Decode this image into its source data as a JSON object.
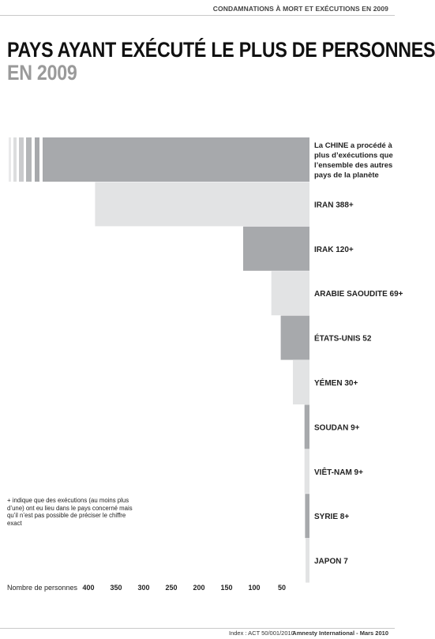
{
  "header": {
    "tag": "CONDAMNATIONS À MORT ET EXÉCUTIONS EN 2009",
    "title_line1": "PAYS AYANT EXÉCUTÉ LE PLUS DE PERSONNES",
    "title_line2": "EN 2009"
  },
  "colors": {
    "dark_bar": "#a7a9ac",
    "light_bar": "#e2e3e4",
    "title_secondary": "#9a9a9a"
  },
  "chart_data": {
    "type": "bar",
    "orientation": "horizontal",
    "direction": "right-to-left",
    "title": "PAYS AYANT EXÉCUTÉ LE PLUS DE PERSONNES EN 2009",
    "xlabel": "Nombre de personnes",
    "xticks": [
      400,
      350,
      300,
      250,
      200,
      150,
      100,
      50
    ],
    "categories": [
      "CHINE",
      "IRAN",
      "IRAK",
      "ARABIE SAOUDITE",
      "ÉTATS-UNIS",
      "YÉMEN",
      "SOUDAN",
      "VIÊT-NAM",
      "SYRIE",
      "JAPON"
    ],
    "values": [
      null,
      388,
      120,
      69,
      52,
      30,
      9,
      9,
      8,
      7
    ],
    "labels": [
      "",
      "IRAN 388+",
      "IRAK 120+",
      "ARABIE SAOUDITE 69+",
      "ÉTATS-UNIS 52",
      "YÉMEN 30+",
      "SOUDAN 9+",
      "VIÊT-NAM 9+",
      "SYRIE 8+",
      "JAPON 7"
    ],
    "china_label": [
      "La CHINE a procédé à",
      "plus d’exécutions que",
      "l’ensemble des autres",
      "pays de la planète"
    ],
    "grid": false,
    "legend": "none"
  },
  "note": "+ indique que des exécutions (au moins plus d’une) ont eu lieu dans le pays concerné mais qu’il n’est pas possible de préciser le chiffre exact",
  "footer": {
    "index": "Index : ACT 50/001/2010",
    "source": "Amnesty International - Mars 2010"
  }
}
